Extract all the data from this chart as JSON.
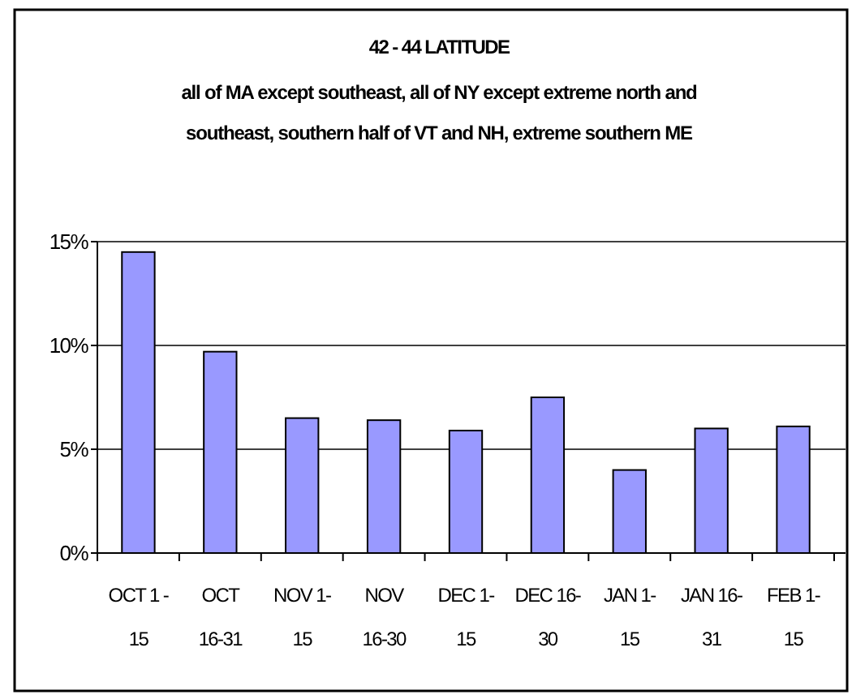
{
  "chart_data": {
    "type": "bar",
    "title": "42 - 44 LATITUDE",
    "subtitle": "all of MA except southeast, all of NY except extreme north and\nsoutheast, southern half of VT and NH, extreme southern ME",
    "categories": [
      "OCT 1 -\n15",
      "OCT\n16-31",
      "NOV 1-\n15",
      "NOV\n16-30",
      "DEC 1-\n15",
      "DEC 16-\n30",
      "JAN 1-\n15",
      "JAN 16-\n31",
      "FEB 1-\n15"
    ],
    "values": [
      14.5,
      9.7,
      6.5,
      6.4,
      5.9,
      7.5,
      4.0,
      6.0,
      6.1
    ],
    "color": "#9999ff",
    "ylim": [
      0,
      15
    ],
    "yticks": [
      {
        "value": 0,
        "label": "0%"
      },
      {
        "value": 5,
        "label": "5%"
      },
      {
        "value": 10,
        "label": "10%"
      },
      {
        "value": 15,
        "label": "15%"
      }
    ],
    "grid": "y"
  }
}
